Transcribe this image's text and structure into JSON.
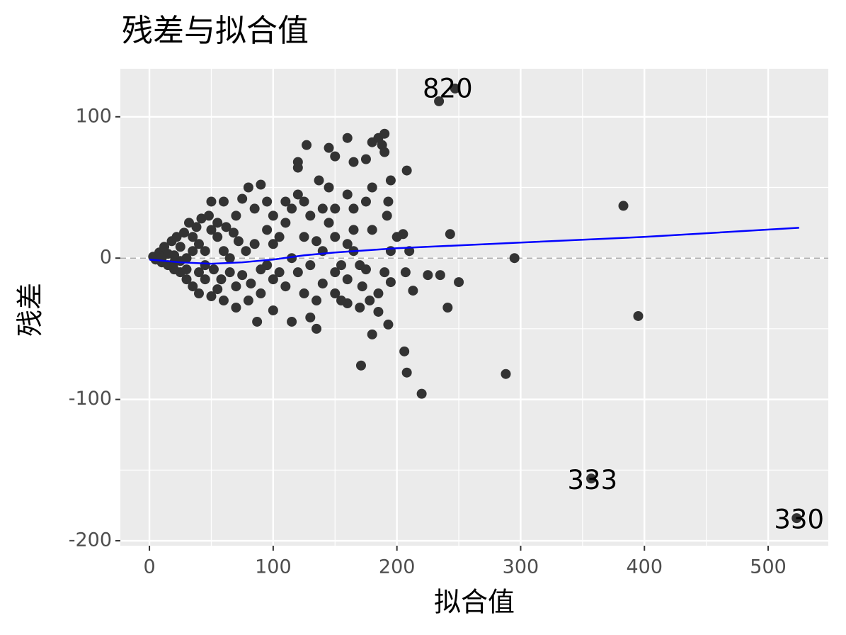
{
  "chart_data": {
    "type": "scatter",
    "title": "残差与拟合值",
    "x_label": "拟合值",
    "y_label": "残差",
    "x": [
      120,
      120,
      127,
      145,
      150,
      160,
      165,
      175,
      180,
      185,
      190,
      188,
      190,
      195,
      193,
      192,
      208,
      205,
      200,
      243,
      207,
      213,
      225,
      235,
      250,
      241,
      295,
      383,
      395,
      288,
      206,
      208,
      220,
      171,
      180,
      193,
      195,
      185,
      178,
      172,
      160,
      155,
      150,
      140,
      135,
      130,
      115,
      100,
      87,
      170,
      175,
      165,
      160,
      155,
      150,
      145,
      140,
      137,
      145,
      130,
      125,
      120,
      115,
      110,
      105,
      100,
      95,
      90,
      80,
      85,
      75,
      70,
      60,
      50,
      110,
      180,
      175,
      160,
      165,
      180,
      210,
      120,
      125,
      135,
      110,
      105,
      95,
      90,
      80,
      70,
      60,
      50,
      45,
      40,
      35,
      30,
      25,
      20,
      15,
      10,
      5,
      3,
      8,
      12,
      18,
      22,
      28,
      32,
      38,
      42,
      48,
      55,
      62,
      68,
      72,
      78,
      85,
      65,
      58,
      52,
      45,
      40,
      35,
      30,
      25,
      20,
      15,
      10,
      55,
      60,
      65,
      75,
      82,
      90,
      100,
      115,
      130,
      140,
      150,
      160,
      170,
      185,
      190,
      195,
      150,
      165,
      125,
      135,
      100,
      95,
      70,
      55,
      30,
      20,
      40,
      35,
      50,
      25,
      45,
      234,
      247,
      357,
      523
    ],
    "values": [
      68,
      64,
      80,
      78,
      72,
      85,
      68,
      70,
      82,
      85,
      88,
      80,
      75,
      55,
      40,
      30,
      62,
      17,
      15,
      17,
      -10,
      -23,
      -12,
      -12,
      -17,
      -35,
      0,
      37,
      -41,
      -82,
      -66,
      -81,
      -96,
      -76,
      -54,
      -47,
      -17,
      -38,
      -30,
      -20,
      -32,
      -30,
      -25,
      -18,
      -50,
      -42,
      -45,
      -37,
      -45,
      -5,
      -8,
      5,
      10,
      -5,
      15,
      25,
      35,
      55,
      50,
      30,
      40,
      45,
      35,
      25,
      15,
      10,
      20,
      52,
      50,
      35,
      42,
      30,
      40,
      40,
      40,
      20,
      40,
      45,
      35,
      50,
      5,
      -10,
      -25,
      -30,
      -20,
      -10,
      -5,
      -25,
      -30,
      -20,
      -30,
      -27,
      -15,
      -10,
      -20,
      -15,
      -10,
      -8,
      -5,
      -3,
      -1,
      1,
      4,
      8,
      12,
      15,
      18,
      25,
      22,
      28,
      30,
      25,
      22,
      18,
      12,
      5,
      10,
      -10,
      -15,
      -8,
      5,
      10,
      5,
      0,
      -2,
      2,
      3,
      0,
      15,
      5,
      0,
      -12,
      -18,
      -8,
      -15,
      0,
      -5,
      5,
      -10,
      -15,
      -35,
      -25,
      -10,
      5,
      35,
      20,
      15,
      12,
      30,
      40,
      -35,
      -22,
      -8,
      -3,
      -25,
      15,
      20,
      8,
      -5,
      111,
      120,
      -156,
      -184
    ],
    "color": "#333333",
    "smooth": {
      "x": [
        0,
        25,
        50,
        75,
        100,
        125,
        150,
        200,
        300,
        400,
        525
      ],
      "values": [
        -1,
        -3,
        -4,
        -3,
        -1,
        2,
        4,
        7,
        11,
        15,
        21.5
      ],
      "color": "#0000ff"
    },
    "hline": 0,
    "annotations": [
      {
        "text": "820",
        "x": 241,
        "y": 119
      },
      {
        "text": "333",
        "x": 358,
        "y": -158
      },
      {
        "text": "330",
        "x": 525,
        "y": -186
      }
    ],
    "xlim": [
      -23.5,
      548.6
    ],
    "ylim": [
      -203.5,
      134
    ],
    "xticks": [
      0,
      100,
      200,
      300,
      400,
      500
    ],
    "yticks": [
      -200,
      -100,
      0,
      100
    ],
    "grid": true
  }
}
